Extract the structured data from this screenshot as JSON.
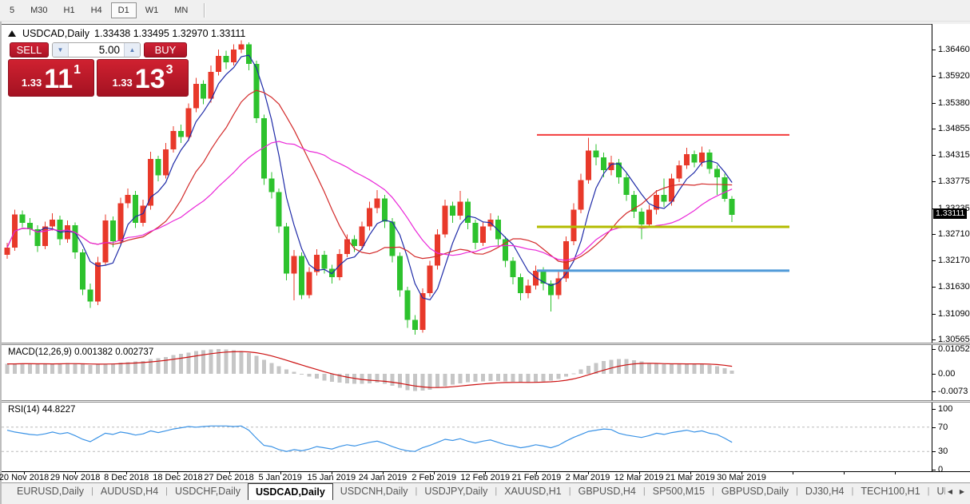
{
  "toolbar": {
    "timeframes": [
      "5",
      "M30",
      "H1",
      "H4",
      "D1",
      "W1",
      "MN"
    ],
    "active": "D1"
  },
  "chart": {
    "symbol": "USDCAD,Daily",
    "ohlc_text": "1.33438 1.33495 1.32970 1.33111"
  },
  "trade_panel": {
    "sell_label": "SELL",
    "buy_label": "BUY",
    "volume": "5.00",
    "sell_price_prefix": "1.33",
    "sell_price_main": "11",
    "sell_price_sup": "1",
    "buy_price_prefix": "1.33",
    "buy_price_main": "13",
    "buy_price_sup": "3"
  },
  "price_axis": {
    "labels": [
      "1.36460",
      "1.35920",
      "1.35380",
      "1.34855",
      "1.34315",
      "1.33775",
      "1.33235",
      "1.32710",
      "1.32170",
      "1.31630",
      "1.31090",
      "1.30565"
    ],
    "current": "1.33111"
  },
  "macd_panel": {
    "label": "MACD(12,26,9) 0.001382 0.002737",
    "axis": [
      {
        "t": "0.010525",
        "v": 0.010525
      },
      {
        "t": "0.00",
        "v": 0
      },
      {
        "t": "-0.0073",
        "v": -0.0073
      }
    ]
  },
  "rsi_panel": {
    "label": "RSI(14) 44.8227",
    "axis": [
      {
        "t": "100",
        "v": 100
      },
      {
        "t": "70",
        "v": 70
      },
      {
        "t": "30",
        "v": 30
      },
      {
        "t": "0",
        "v": 0
      }
    ]
  },
  "date_axis": [
    "20 Nov 2018",
    "29 Nov 2018",
    "8 Dec 2018",
    "18 Dec 2018",
    "27 Dec 2018",
    "5 Jan 2019",
    "15 Jan 2019",
    "24 Jan 2019",
    "2 Feb 2019",
    "12 Feb 2019",
    "21 Feb 2019",
    "2 Mar 2019",
    "12 Mar 2019",
    "21 Mar 2019",
    "30 Mar 2019"
  ],
  "tabs": {
    "items": [
      "EURUSD,Daily",
      "AUDUSD,H4",
      "USDCHF,Daily",
      "USDCAD,Daily",
      "USDCNH,Daily",
      "USDJPY,Daily",
      "XAUUSD,H1",
      "GBPUSD,H4",
      "SP500,M15",
      "GBPUSD,Daily",
      "DJ30,H4",
      "TECH100,H1",
      "UKC"
    ],
    "active": "USDCAD,Daily"
  },
  "chart_data": {
    "type": "candlestick",
    "symbol": "USDCAD",
    "timeframe": "Daily",
    "last_ohlc": {
      "open": 1.33438,
      "high": 1.33495,
      "low": 1.3297,
      "close": 1.33111
    },
    "price_range": [
      1.30565,
      1.3646
    ],
    "colors": {
      "up": "#e8392a",
      "down": "#2dc22d",
      "ma_fast": "#1f2ba8",
      "ma_mid": "#d32a2a",
      "ma_slow": "#ea28d8",
      "macd_hist": "#c6c6c6",
      "macd_signal": "#cc1111",
      "rsi_line": "#3b93e6"
    },
    "levels": [
      {
        "price": 1.3474,
        "color": "#f23b3b",
        "width": 2
      },
      {
        "price": 1.3287,
        "color": "#b3bb00",
        "width": 3
      },
      {
        "price": 1.3198,
        "color": "#4f9ad8",
        "width": 3
      }
    ],
    "moving_averages": [
      {
        "period": 5
      },
      {
        "period": 13
      },
      {
        "period": 24
      }
    ],
    "candles": [
      [
        1.323,
        1.3255,
        1.3222,
        1.3245
      ],
      [
        1.3245,
        1.3322,
        1.3238,
        1.3312
      ],
      [
        1.3312,
        1.332,
        1.3286,
        1.3295
      ],
      [
        1.3295,
        1.3305,
        1.327,
        1.3282
      ],
      [
        1.3282,
        1.329,
        1.3236,
        1.3248
      ],
      [
        1.3248,
        1.3298,
        1.3242,
        1.3288
      ],
      [
        1.3288,
        1.3315,
        1.328,
        1.3302
      ],
      [
        1.3302,
        1.331,
        1.325,
        1.3262
      ],
      [
        1.3262,
        1.33,
        1.3255,
        1.329
      ],
      [
        1.329,
        1.3296,
        1.3222,
        1.3235
      ],
      [
        1.3235,
        1.3242,
        1.3148,
        1.316
      ],
      [
        1.316,
        1.3172,
        1.3122,
        1.3135
      ],
      [
        1.3135,
        1.3226,
        1.3128,
        1.3215
      ],
      [
        1.3215,
        1.3312,
        1.3208,
        1.33
      ],
      [
        1.33,
        1.3308,
        1.3246,
        1.3258
      ],
      [
        1.3258,
        1.3346,
        1.3252,
        1.3335
      ],
      [
        1.3335,
        1.3365,
        1.3325,
        1.3352
      ],
      [
        1.3352,
        1.336,
        1.3285,
        1.3295
      ],
      [
        1.3295,
        1.3342,
        1.3288,
        1.333
      ],
      [
        1.333,
        1.344,
        1.3322,
        1.3425
      ],
      [
        1.3425,
        1.3432,
        1.338,
        1.3392
      ],
      [
        1.3392,
        1.3458,
        1.3385,
        1.3445
      ],
      [
        1.3445,
        1.3492,
        1.3438,
        1.3482
      ],
      [
        1.3482,
        1.3495,
        1.3458,
        1.347
      ],
      [
        1.347,
        1.3538,
        1.3462,
        1.3528
      ],
      [
        1.3528,
        1.359,
        1.352,
        1.3578
      ],
      [
        1.3578,
        1.3585,
        1.3536,
        1.3548
      ],
      [
        1.3548,
        1.3615,
        1.354,
        1.3602
      ],
      [
        1.3602,
        1.3648,
        1.3595,
        1.3635
      ],
      [
        1.3635,
        1.3645,
        1.3608,
        1.3622
      ],
      [
        1.3622,
        1.3658,
        1.3615,
        1.3648
      ],
      [
        1.3648,
        1.3666,
        1.364,
        1.3658
      ],
      [
        1.3658,
        1.3662,
        1.3605,
        1.3618
      ],
      [
        1.3618,
        1.3625,
        1.3498,
        1.3508
      ],
      [
        1.3508,
        1.3515,
        1.3372,
        1.3385
      ],
      [
        1.3385,
        1.3398,
        1.3345,
        1.3358
      ],
      [
        1.3358,
        1.3365,
        1.3275,
        1.3288
      ],
      [
        1.3288,
        1.3295,
        1.3178,
        1.3192
      ],
      [
        1.3192,
        1.324,
        1.3138,
        1.3228
      ],
      [
        1.3228,
        1.3235,
        1.314,
        1.3148
      ],
      [
        1.3148,
        1.3205,
        1.3142,
        1.3195
      ],
      [
        1.3195,
        1.3242,
        1.3188,
        1.323
      ],
      [
        1.323,
        1.3238,
        1.3192,
        1.3202
      ],
      [
        1.3202,
        1.321,
        1.3172,
        1.3185
      ],
      [
        1.3185,
        1.3242,
        1.3178,
        1.3232
      ],
      [
        1.3232,
        1.3272,
        1.3225,
        1.3262
      ],
      [
        1.3262,
        1.327,
        1.3236,
        1.3248
      ],
      [
        1.3248,
        1.3298,
        1.324,
        1.3288
      ],
      [
        1.3288,
        1.3338,
        1.328,
        1.3325
      ],
      [
        1.3325,
        1.3362,
        1.3315,
        1.3345
      ],
      [
        1.3345,
        1.3352,
        1.3285,
        1.3298
      ],
      [
        1.3298,
        1.3305,
        1.3215,
        1.3228
      ],
      [
        1.3228,
        1.3235,
        1.3145,
        1.3158
      ],
      [
        1.3158,
        1.3165,
        1.3082,
        1.3098
      ],
      [
        1.3098,
        1.3108,
        1.3068,
        1.3078
      ],
      [
        1.3078,
        1.3162,
        1.3072,
        1.3152
      ],
      [
        1.3152,
        1.3218,
        1.3145,
        1.3208
      ],
      [
        1.3208,
        1.3282,
        1.32,
        1.3272
      ],
      [
        1.3272,
        1.3342,
        1.3265,
        1.333
      ],
      [
        1.333,
        1.3338,
        1.3295,
        1.331
      ],
      [
        1.331,
        1.336,
        1.3302,
        1.3338
      ],
      [
        1.3338,
        1.3345,
        1.3282,
        1.3295
      ],
      [
        1.3295,
        1.3302,
        1.3242,
        1.3255
      ],
      [
        1.3255,
        1.3298,
        1.3248,
        1.3288
      ],
      [
        1.3288,
        1.3315,
        1.328,
        1.3302
      ],
      [
        1.3302,
        1.331,
        1.325,
        1.3262
      ],
      [
        1.3262,
        1.3268,
        1.3205,
        1.3218
      ],
      [
        1.3218,
        1.3225,
        1.317,
        1.3185
      ],
      [
        1.3185,
        1.3192,
        1.3138,
        1.3152
      ],
      [
        1.3152,
        1.318,
        1.3142,
        1.3168
      ],
      [
        1.3168,
        1.3208,
        1.316,
        1.3198
      ],
      [
        1.3198,
        1.3205,
        1.3158,
        1.3172
      ],
      [
        1.3172,
        1.3178,
        1.3115,
        1.3148
      ],
      [
        1.3148,
        1.3195,
        1.314,
        1.3182
      ],
      [
        1.3182,
        1.3268,
        1.3175,
        1.3258
      ],
      [
        1.3258,
        1.3335,
        1.325,
        1.3322
      ],
      [
        1.3322,
        1.3395,
        1.3315,
        1.3382
      ],
      [
        1.3382,
        1.3468,
        1.3375,
        1.3442
      ],
      [
        1.3442,
        1.3455,
        1.3412,
        1.3428
      ],
      [
        1.3428,
        1.3438,
        1.3388,
        1.3402
      ],
      [
        1.3402,
        1.3432,
        1.3392,
        1.3418
      ],
      [
        1.3418,
        1.3425,
        1.3375,
        1.3388
      ],
      [
        1.3388,
        1.3395,
        1.334,
        1.3352
      ],
      [
        1.3352,
        1.336,
        1.3305,
        1.3318
      ],
      [
        1.3318,
        1.3325,
        1.3262,
        1.3292
      ],
      [
        1.3292,
        1.3332,
        1.3285,
        1.3322
      ],
      [
        1.3322,
        1.3362,
        1.3312,
        1.3352
      ],
      [
        1.3352,
        1.3385,
        1.3328,
        1.3338
      ],
      [
        1.3338,
        1.3395,
        1.333,
        1.3385
      ],
      [
        1.3385,
        1.3422,
        1.3378,
        1.3412
      ],
      [
        1.3412,
        1.3448,
        1.3405,
        1.3435
      ],
      [
        1.3435,
        1.3442,
        1.3408,
        1.3418
      ],
      [
        1.3418,
        1.345,
        1.341,
        1.3438
      ],
      [
        1.3438,
        1.3445,
        1.3395,
        1.3405
      ],
      [
        1.3405,
        1.3412,
        1.3352,
        1.3388
      ],
      [
        1.3388,
        1.3395,
        1.3338,
        1.3344
      ],
      [
        1.33438,
        1.33495,
        1.3297,
        1.33111
      ]
    ],
    "macd": {
      "params": [
        12,
        26,
        9
      ],
      "value": 0.001382,
      "signal_value": 0.002737,
      "range": [
        -0.0073,
        0.010525
      ],
      "histogram": [
        0.0042,
        0.0043,
        0.0044,
        0.0043,
        0.0042,
        0.0041,
        0.0042,
        0.0044,
        0.0045,
        0.0043,
        0.004,
        0.0038,
        0.0039,
        0.0042,
        0.0044,
        0.0047,
        0.005,
        0.0052,
        0.0055,
        0.0062,
        0.0066,
        0.0072,
        0.0079,
        0.0084,
        0.009,
        0.0096,
        0.01,
        0.0104,
        0.0105,
        0.0103,
        0.01,
        0.0096,
        0.0088,
        0.0076,
        0.006,
        0.0046,
        0.0032,
        0.0018,
        0.0008,
        -0.0002,
        -0.0012,
        -0.002,
        -0.0028,
        -0.0034,
        -0.0038,
        -0.004,
        -0.0042,
        -0.0042,
        -0.004,
        -0.0038,
        -0.0042,
        -0.005,
        -0.006,
        -0.0069,
        -0.0073,
        -0.0072,
        -0.0068,
        -0.006,
        -0.0052,
        -0.0046,
        -0.004,
        -0.0036,
        -0.0034,
        -0.0032,
        -0.003,
        -0.003,
        -0.0032,
        -0.0034,
        -0.0036,
        -0.0037,
        -0.0035,
        -0.0032,
        -0.0028,
        -0.0022,
        -0.0012,
        0.0002,
        0.0018,
        0.0034,
        0.0046,
        0.0054,
        0.006,
        0.0063,
        0.0062,
        0.0058,
        0.0052,
        0.0046,
        0.0042,
        0.004,
        0.004,
        0.0041,
        0.0042,
        0.0042,
        0.0041,
        0.0038,
        0.0032,
        0.0024,
        0.0014
      ]
    },
    "rsi": {
      "period": 14,
      "value": 44.8227,
      "levels": [
        30,
        70
      ],
      "values": [
        65,
        62,
        60,
        58,
        57,
        59,
        62,
        59,
        61,
        56,
        50,
        46,
        53,
        60,
        58,
        62,
        60,
        57,
        59,
        64,
        61,
        64,
        67,
        69,
        71,
        70,
        71,
        72,
        72,
        72,
        71,
        72,
        65,
        52,
        40,
        38,
        33,
        30,
        33,
        31,
        34,
        38,
        36,
        34,
        38,
        41,
        39,
        42,
        45,
        47,
        43,
        38,
        34,
        31,
        30,
        36,
        40,
        45,
        50,
        48,
        51,
        47,
        44,
        47,
        49,
        45,
        41,
        39,
        36,
        38,
        41,
        39,
        36,
        40,
        47,
        53,
        58,
        63,
        65,
        67,
        66,
        60,
        57,
        55,
        53,
        56,
        60,
        58,
        61,
        63,
        65,
        62,
        64,
        60,
        58,
        52,
        45
      ]
    }
  }
}
